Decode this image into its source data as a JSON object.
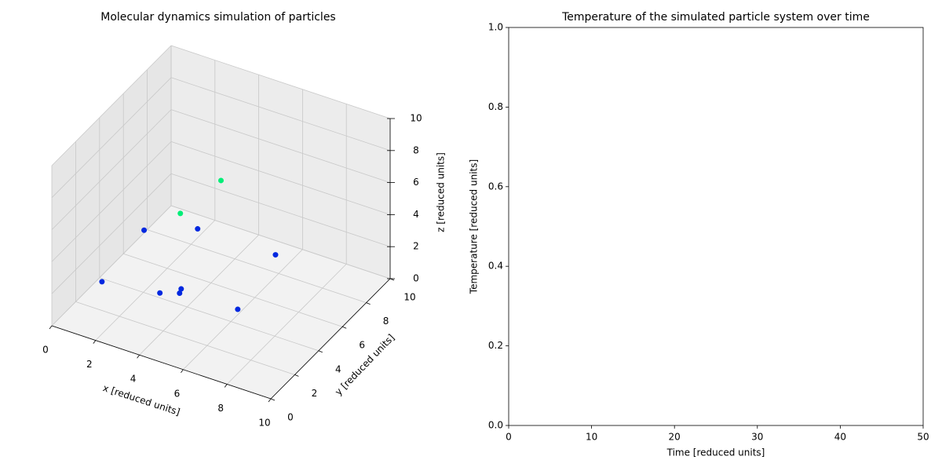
{
  "chart_data": [
    {
      "type": "scatter3d",
      "title": "Molecular dynamics simulation of particles",
      "xlabel": "x [reduced units]",
      "ylabel": "y [reduced units]",
      "zlabel": "z [reduced units]",
      "x": [
        5.0,
        2.6,
        0.4,
        2.3,
        6.4,
        1.2,
        3.3,
        4.2,
        4.0,
        7.4
      ],
      "y": [
        5,
        6,
        7,
        8,
        7,
        2,
        3,
        3,
        3.5,
        2
      ],
      "z": [
        7.6,
        3.7,
        0.9,
        1.1,
        2.1,
        1.8,
        1.3,
        1.7,
        1.5,
        2.9
      ],
      "colors": [
        "#00ee77",
        "#00ee77",
        "#0028e0",
        "#0028e0",
        "#0028e0",
        "#0028e0",
        "#0028e0",
        "#0028e0",
        "#0028e0",
        "#0028e0"
      ],
      "xlim": [
        0,
        10
      ],
      "ylim": [
        0,
        10
      ],
      "zlim": [
        0,
        10
      ],
      "xticks": [
        0,
        2,
        4,
        6,
        8,
        10
      ],
      "yticks": [
        0,
        2,
        4,
        6,
        8,
        10
      ],
      "zticks": [
        0,
        2,
        4,
        6,
        8,
        10
      ],
      "grid": true
    },
    {
      "type": "line",
      "title": "Temperature of the simulated particle system over time",
      "xlabel": "Time [reduced units]",
      "ylabel": "Temperature [reduced units]",
      "xlim": [
        0,
        50
      ],
      "ylim": [
        0,
        1
      ],
      "xticks": [
        0,
        10,
        20,
        30,
        40,
        50
      ],
      "yticks": [
        {
          "value": 0,
          "label": "0.0"
        },
        0.2,
        0.4,
        0.6,
        0.8,
        {
          "value": 1,
          "label": "1.0"
        }
      ]
    }
  ]
}
